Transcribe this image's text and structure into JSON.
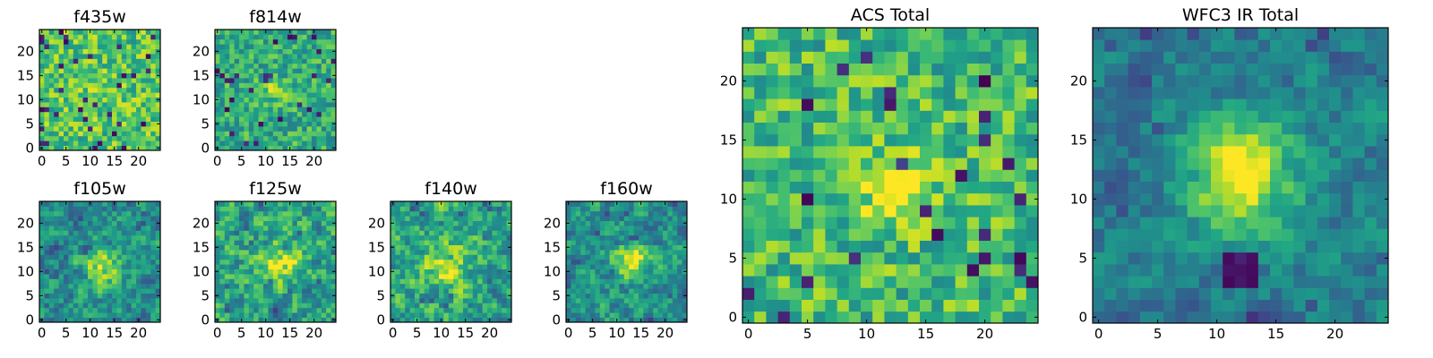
{
  "chart_data": [
    {
      "type": "heatmap",
      "title": "f435w",
      "colormap": "viridis",
      "xlim": [
        -0.5,
        24.5
      ],
      "ylim": [
        -0.5,
        24.5
      ],
      "xticks": [
        0,
        5,
        10,
        15,
        20
      ],
      "yticks": [
        0,
        5,
        10,
        15,
        20
      ],
      "seed": 11,
      "blob": {
        "x": 12,
        "y": 12,
        "sigma": 3,
        "amp": 0.05
      },
      "smooth": 0,
      "noise": 0.22,
      "base": 0.72,
      "dark_fraction": 0.05
    },
    {
      "type": "heatmap",
      "title": "f814w",
      "colormap": "viridis",
      "xlim": [
        -0.5,
        24.5
      ],
      "ylim": [
        -0.5,
        24.5
      ],
      "xticks": [
        0,
        5,
        10,
        15,
        20
      ],
      "yticks": [
        0,
        5,
        10,
        15,
        20
      ],
      "seed": 23,
      "blob": {
        "x": 12,
        "y": 12,
        "sigma": 1.6,
        "amp": 0.3
      },
      "smooth": 0,
      "noise": 0.2,
      "base": 0.62,
      "dark_fraction": 0.04
    },
    {
      "type": "heatmap",
      "title": "f105w",
      "colormap": "viridis",
      "xlim": [
        -0.5,
        24.5
      ],
      "ylim": [
        -0.5,
        24.5
      ],
      "xticks": [
        0,
        5,
        10,
        15,
        20
      ],
      "yticks": [
        0,
        5,
        10,
        15,
        20
      ],
      "seed": 37,
      "blob": {
        "x": 12,
        "y": 11,
        "sigma": 2.5,
        "amp": 0.45
      },
      "smooth": 1,
      "noise": 0.32,
      "base": 0.5,
      "dark_fraction": 0.03
    },
    {
      "type": "heatmap",
      "title": "f125w",
      "colormap": "viridis",
      "xlim": [
        -0.5,
        24.5
      ],
      "ylim": [
        -0.5,
        24.5
      ],
      "xticks": [
        0,
        5,
        10,
        15,
        20
      ],
      "yticks": [
        0,
        5,
        10,
        15,
        20
      ],
      "seed": 41,
      "blob": {
        "x": 13,
        "y": 12,
        "sigma": 3,
        "amp": 0.35
      },
      "smooth": 1,
      "noise": 0.36,
      "base": 0.58,
      "dark_fraction": 0.03
    },
    {
      "type": "heatmap",
      "title": "f140w",
      "colormap": "viridis",
      "xlim": [
        -0.5,
        24.5
      ],
      "ylim": [
        -0.5,
        24.5
      ],
      "xticks": [
        0,
        5,
        10,
        15,
        20
      ],
      "yticks": [
        0,
        5,
        10,
        15,
        20
      ],
      "seed": 53,
      "blob": {
        "x": 11,
        "y": 11,
        "sigma": 3,
        "amp": 0.35
      },
      "smooth": 1,
      "noise": 0.36,
      "base": 0.6,
      "dark_fraction": 0.03
    },
    {
      "type": "heatmap",
      "title": "f160w",
      "colormap": "viridis",
      "xlim": [
        -0.5,
        24.5
      ],
      "ylim": [
        -0.5,
        24.5
      ],
      "xticks": [
        0,
        5,
        10,
        15,
        20
      ],
      "yticks": [
        0,
        5,
        10,
        15,
        20
      ],
      "seed": 67,
      "blob": {
        "x": 13,
        "y": 12,
        "sigma": 2.3,
        "amp": 0.5
      },
      "smooth": 1,
      "noise": 0.3,
      "base": 0.52,
      "dark_fraction": 0.02
    },
    {
      "type": "heatmap",
      "title": "ACS Total",
      "colormap": "viridis",
      "xlim": [
        -0.5,
        24.5
      ],
      "ylim": [
        -0.5,
        24.5
      ],
      "xticks": [
        0,
        5,
        10,
        15,
        20
      ],
      "yticks": [
        0,
        5,
        10,
        15,
        20
      ],
      "seed": 79,
      "blob": {
        "x": 12,
        "y": 11,
        "sigma": 2.2,
        "amp": 0.28
      },
      "smooth": 0,
      "noise": 0.22,
      "base": 0.68,
      "dark_fraction": 0.04
    },
    {
      "type": "heatmap",
      "title": "WFC3 IR Total",
      "colormap": "viridis",
      "xlim": [
        -0.5,
        24.5
      ],
      "ylim": [
        -0.5,
        24.5
      ],
      "xticks": [
        0,
        5,
        10,
        15,
        20
      ],
      "yticks": [
        0,
        5,
        10,
        15,
        20
      ],
      "seed": 97,
      "blob": {
        "x": 12,
        "y": 12,
        "sigma": 3.2,
        "amp": 0.6
      },
      "smooth": 1,
      "noise": 0.22,
      "base": 0.42,
      "dark_fraction": 0.02,
      "dark_spot": {
        "x": 12,
        "y": 4,
        "size": 3
      }
    }
  ]
}
